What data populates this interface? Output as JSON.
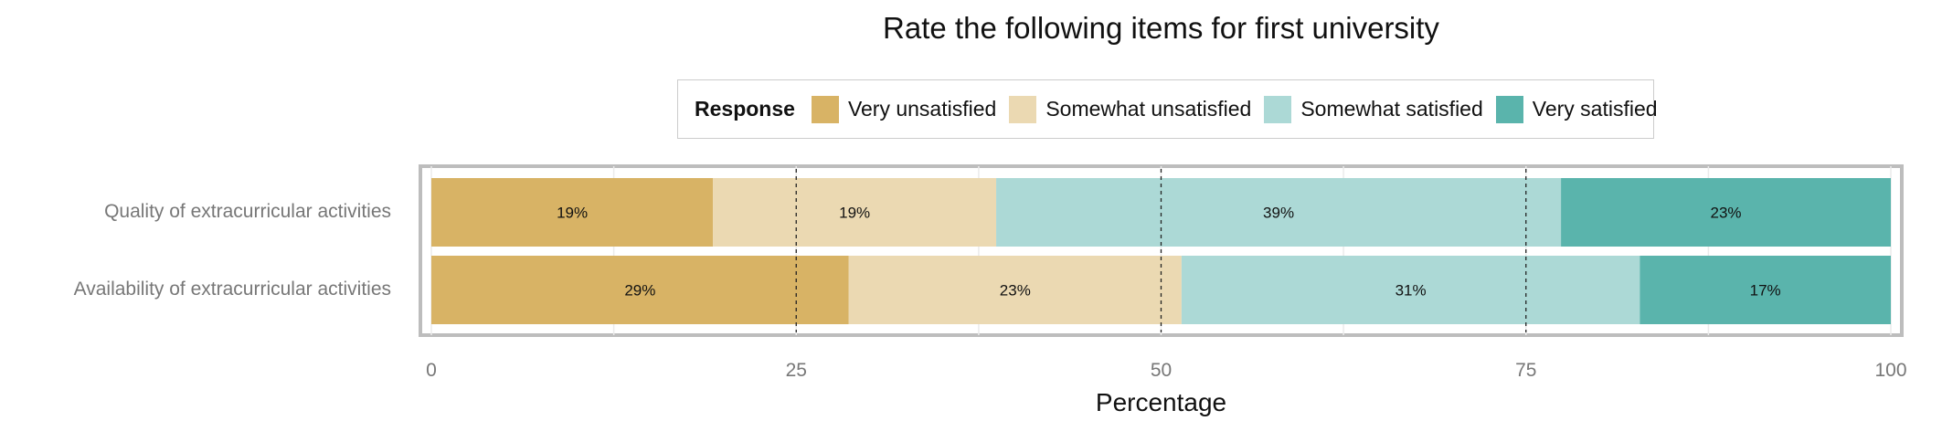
{
  "chart_data": {
    "type": "bar",
    "orientation": "horizontal",
    "stacked": true,
    "title": "Rate the following items for first university",
    "xlabel": "Percentage",
    "ylabel": "",
    "xlim": [
      0,
      100
    ],
    "xticks": [
      "0",
      "25",
      "50",
      "75",
      "100"
    ],
    "legend": {
      "title": "Response",
      "placement": "top",
      "entries": [
        "Very unsatisfied",
        "Somewhat unsatisfied",
        "Somewhat satisfied",
        "Very satisfied"
      ]
    },
    "categories": [
      "Quality of extracurricular activities",
      "Availability of extracurricular activities"
    ],
    "series": [
      {
        "name": "Very unsatisfied",
        "color": "#d8b365",
        "values": [
          19.3,
          28.6
        ],
        "labels": [
          "19%",
          "29%"
        ]
      },
      {
        "name": "Somewhat unsatisfied",
        "color": "#ebd9b2",
        "values": [
          19.4,
          22.8
        ],
        "labels": [
          "19%",
          "23%"
        ]
      },
      {
        "name": "Somewhat satisfied",
        "color": "#acd9d6",
        "values": [
          38.7,
          31.4
        ],
        "labels": [
          "39%",
          "31%"
        ]
      },
      {
        "name": "Very satisfied",
        "color": "#5ab4ac",
        "values": [
          22.6,
          17.2
        ],
        "labels": [
          "23%",
          "17%"
        ]
      }
    ],
    "grid": true,
    "reference_lines": [
      25,
      50,
      75
    ]
  }
}
